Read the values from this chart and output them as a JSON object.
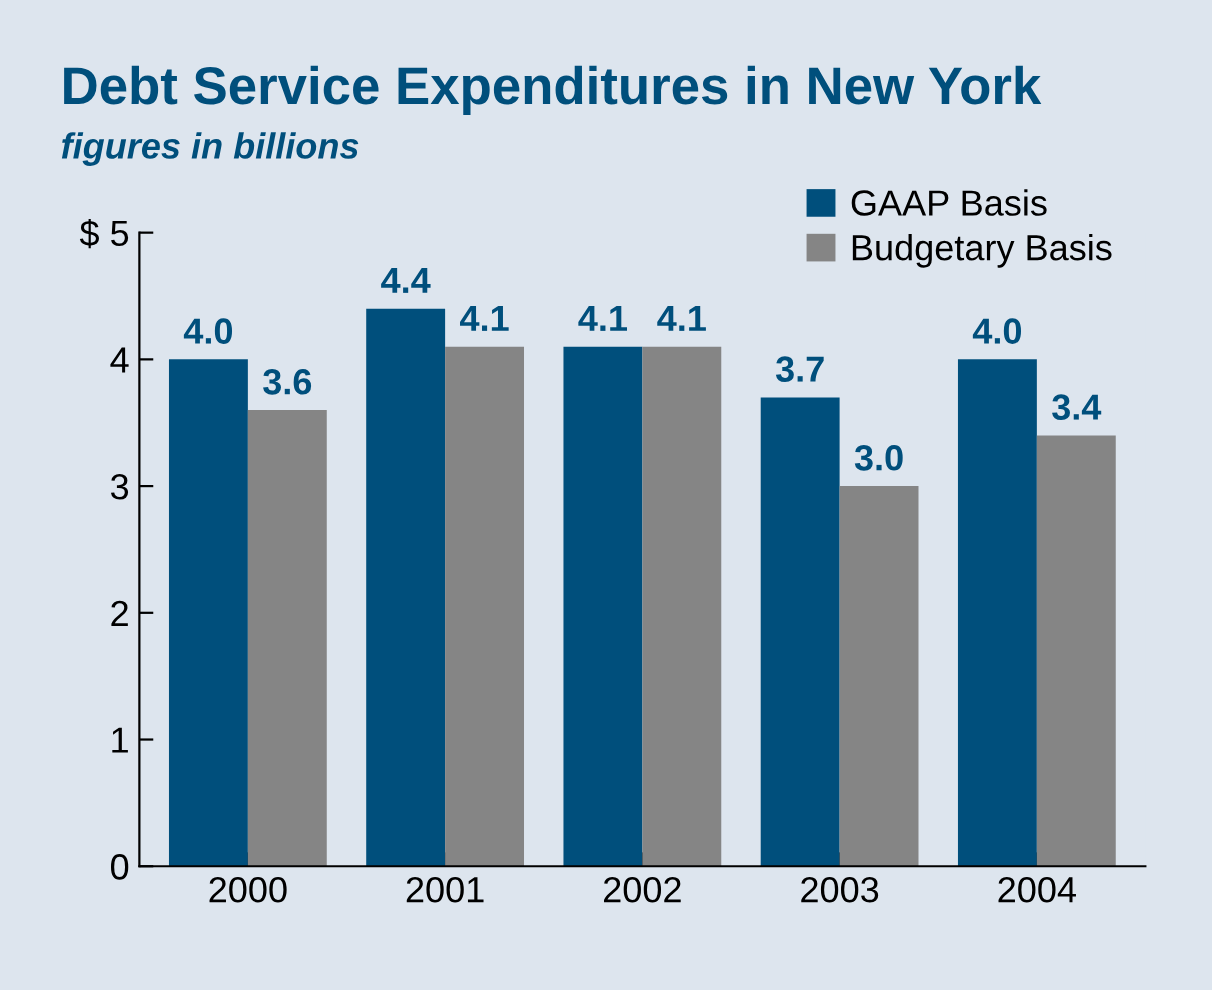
{
  "chart_data": {
    "type": "bar",
    "title": "Debt Service Expenditures in New York",
    "subtitle": "figures in billions",
    "categories": [
      "2000",
      "2001",
      "2002",
      "2003",
      "2004"
    ],
    "series": [
      {
        "name": "GAAP Basis",
        "color": "#004f7c",
        "values": [
          4.0,
          4.4,
          4.1,
          3.7,
          4.0
        ],
        "value_labels": [
          "4.0",
          "4.4",
          "4.1",
          "3.7",
          "4.0"
        ]
      },
      {
        "name": "Budgetary Basis",
        "color": "#858585",
        "values": [
          3.6,
          4.1,
          4.1,
          3.0,
          3.4
        ],
        "value_labels": [
          "3.6",
          "4.1",
          "4.1",
          "3.0",
          "3.4"
        ]
      }
    ],
    "ylim": [
      0,
      5
    ],
    "yticks": [
      0,
      1,
      2,
      3,
      4,
      {
        "value": 5,
        "label": "$ 5"
      }
    ],
    "legend": "top right",
    "grid": false
  }
}
